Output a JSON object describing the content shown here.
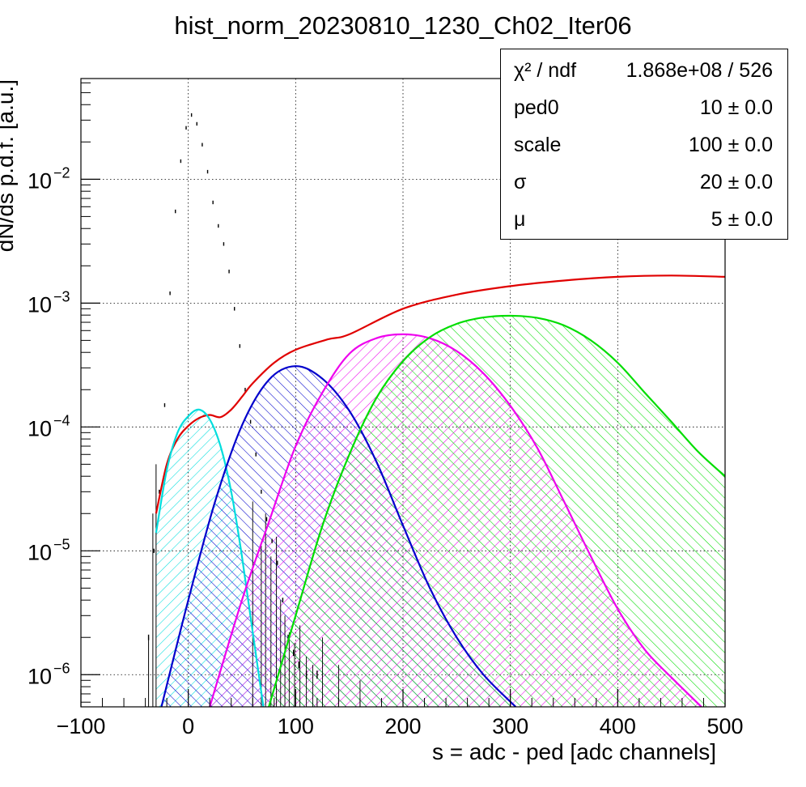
{
  "title": "hist_norm_20230810_1230_Ch02_Iter06",
  "stats_box": {
    "rows": [
      {
        "label": "χ² / ndf",
        "value": "1.868e+08 / 526"
      },
      {
        "label": "ped0",
        "value": "10 ± 0.0"
      },
      {
        "label": "scale",
        "value": "100 ± 0.0"
      },
      {
        "label": "σ",
        "value": "20 ± 0.0"
      },
      {
        "label": "μ",
        "value": "5 ± 0.0"
      }
    ]
  },
  "chart_data": {
    "type": "line",
    "title": "hist_norm_20230810_1230_Ch02_Iter06",
    "xlabel": "s = adc - ped [adc channels]",
    "ylabel": "dN/ds p.d.f. [a.u.]",
    "xlim": [
      -100,
      500
    ],
    "ylim": [
      5.5e-07,
      0.065
    ],
    "yscale": "log",
    "grid": true,
    "x_ticks": [
      "−100",
      "0",
      "100",
      "200",
      "300",
      "400",
      "500"
    ],
    "y_ticks": [
      {
        "value": 1e-06,
        "label": "10",
        "exp": "−6"
      },
      {
        "value": 1e-05,
        "label": "10",
        "exp": "−5"
      },
      {
        "value": 0.0001,
        "label": "10",
        "exp": "−4"
      },
      {
        "value": 0.001,
        "label": "10",
        "exp": "−3"
      },
      {
        "value": 0.01,
        "label": "10",
        "exp": "−2"
      }
    ],
    "histogram": {
      "color": "#000000",
      "x": [
        -37,
        -32,
        -27,
        -22,
        -17,
        -12,
        -7,
        -2,
        3,
        8,
        13,
        18,
        23,
        28,
        33,
        38,
        43,
        48,
        53,
        58,
        63,
        68,
        73,
        78,
        83,
        88,
        93,
        98,
        103,
        110,
        120
      ],
      "y": [
        2e-06,
        1e-05,
        3e-05,
        0.00015,
        0.0012,
        0.0055,
        0.014,
        0.026,
        0.033,
        0.028,
        0.019,
        0.0115,
        0.0065,
        0.0042,
        0.003,
        0.0018,
        0.0009,
        0.00045,
        0.0002,
        0.00011,
        6e-05,
        3e-05,
        1.8e-05,
        1.2e-05,
        8e-06,
        4e-06,
        2e-06,
        1.5e-06,
        1.2e-06,
        1e-06,
        1e-06
      ]
    },
    "series": [
      {
        "color": "#e00000",
        "fill": false,
        "x": [
          -30,
          -20,
          -10,
          0,
          10,
          20,
          30,
          40,
          50,
          60,
          80,
          100,
          130,
          150,
          200,
          250,
          300,
          350,
          400,
          450,
          500
        ],
        "y": [
          2e-05,
          5e-05,
          8e-05,
          0.000102,
          0.000118,
          0.000125,
          0.00012,
          0.000138,
          0.000175,
          0.000225,
          0.00033,
          0.00042,
          0.00051,
          0.00056,
          0.0009,
          0.00117,
          0.00137,
          0.00152,
          0.00163,
          0.00167,
          0.00163
        ]
      },
      {
        "color": "#00dddd",
        "fill": true,
        "x": [
          -30,
          -20,
          -10,
          0,
          10,
          20,
          30,
          40,
          50,
          60,
          70
        ],
        "y": [
          1.4e-05,
          4.5e-05,
          9e-05,
          0.000122,
          0.000138,
          0.000115,
          7e-05,
          3e-05,
          9e-06,
          2.2e-06,
          5.5e-07
        ]
      },
      {
        "color": "#0000cc",
        "fill": true,
        "x": [
          -25,
          0,
          25,
          50,
          75,
          100,
          125,
          150,
          175,
          200,
          225,
          250,
          275,
          305
        ],
        "y": [
          5.5e-07,
          4e-06,
          2.5e-05,
          0.000103,
          0.00024,
          0.00031,
          0.000245,
          0.000135,
          5.3e-05,
          1.6e-05,
          5e-06,
          2e-06,
          1e-06,
          5.5e-07
        ]
      },
      {
        "color": "#ee00ee",
        "fill": true,
        "x": [
          20,
          50,
          75,
          100,
          125,
          150,
          175,
          200,
          225,
          250,
          275,
          300,
          325,
          350,
          375,
          400,
          425,
          450,
          478
        ],
        "y": [
          5.5e-07,
          4e-06,
          1.7e-05,
          7e-05,
          0.00019,
          0.00039,
          0.00052,
          0.00056,
          0.00052,
          0.00041,
          0.00027,
          0.000148,
          6.8e-05,
          2.5e-05,
          9e-06,
          3.4e-06,
          1.6e-06,
          9.5e-07,
          5.5e-07
        ]
      },
      {
        "color": "#00dd00",
        "fill": true,
        "x": [
          75,
          100,
          125,
          150,
          175,
          200,
          225,
          250,
          275,
          300,
          325,
          350,
          375,
          400,
          425,
          450,
          475,
          500
        ],
        "y": [
          5.5e-07,
          3e-06,
          1.6e-05,
          6e-05,
          0.00017,
          0.00034,
          0.00053,
          0.00068,
          0.000765,
          0.00079,
          0.00076,
          0.00066,
          0.0005,
          0.00033,
          0.00019,
          0.00011,
          6.3e-05,
          4e-05
        ]
      }
    ]
  }
}
